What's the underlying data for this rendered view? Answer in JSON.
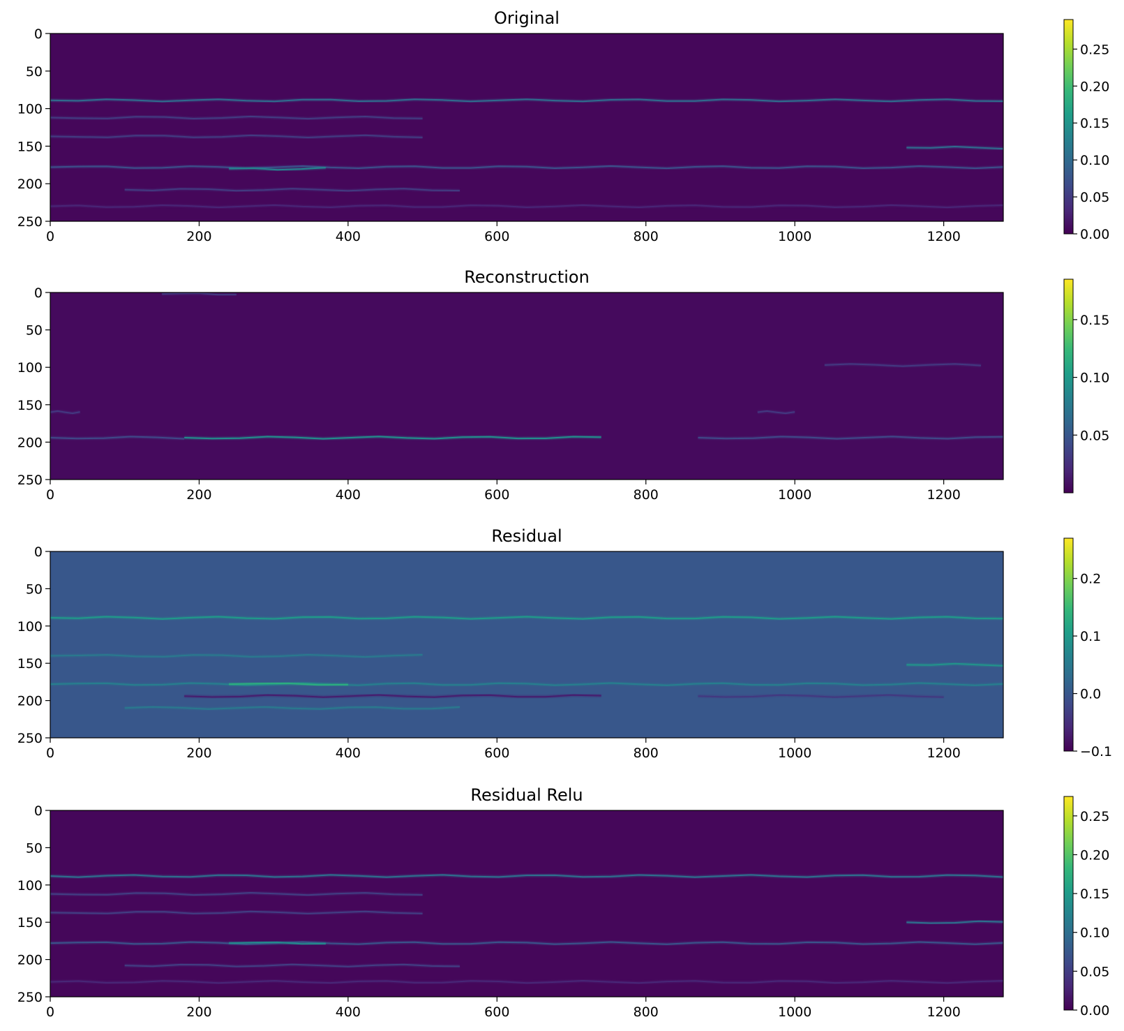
{
  "chart_data": [
    {
      "type": "heatmap",
      "title": "Original",
      "xlabel": "",
      "ylabel": "",
      "xlim": [
        0,
        1280
      ],
      "ylim": [
        250,
        0
      ],
      "xticks": [
        0,
        200,
        400,
        600,
        800,
        1000,
        1200
      ],
      "xtick_labels": [
        "0",
        "200",
        "400",
        "600",
        "800",
        "1000",
        "1200"
      ],
      "yticks": [
        0,
        50,
        100,
        150,
        200,
        250
      ],
      "ytick_labels": [
        "0",
        "50",
        "100",
        "150",
        "200",
        "250"
      ],
      "colormap": "viridis",
      "colorbar": {
        "vmin": 0.0,
        "vmax": 0.29,
        "ticks": [
          0.0,
          0.05,
          0.1,
          0.15,
          0.2,
          0.25
        ],
        "tick_labels": [
          "0.00",
          "0.05",
          "0.10",
          "0.15",
          "0.20",
          "0.25"
        ]
      },
      "background_value": 0.005,
      "bands": [
        {
          "y": 89,
          "x_from": 0,
          "x_to": 1280,
          "value": 0.1
        },
        {
          "y": 178,
          "x_from": 0,
          "x_to": 1280,
          "value": 0.07
        },
        {
          "y": 180,
          "x_from": 240,
          "x_to": 370,
          "value": 0.13
        },
        {
          "y": 152,
          "x_from": 1150,
          "x_to": 1280,
          "value": 0.1
        },
        {
          "y": 112,
          "x_from": 0,
          "x_to": 500,
          "value": 0.05
        },
        {
          "y": 137,
          "x_from": 0,
          "x_to": 500,
          "value": 0.05
        },
        {
          "y": 208,
          "x_from": 100,
          "x_to": 550,
          "value": 0.05
        },
        {
          "y": 230,
          "x_from": 0,
          "x_to": 1280,
          "value": 0.03
        }
      ]
    },
    {
      "type": "heatmap",
      "title": "Reconstruction",
      "xlabel": "",
      "ylabel": "",
      "xlim": [
        0,
        1280
      ],
      "ylim": [
        250,
        0
      ],
      "xticks": [
        0,
        200,
        400,
        600,
        800,
        1000,
        1200
      ],
      "xtick_labels": [
        "0",
        "200",
        "400",
        "600",
        "800",
        "1000",
        "1200"
      ],
      "yticks": [
        0,
        50,
        100,
        150,
        200,
        250
      ],
      "ytick_labels": [
        "0",
        "50",
        "100",
        "150",
        "200",
        "250"
      ],
      "colormap": "viridis",
      "colorbar": {
        "vmin": 0.0,
        "vmax": 0.185,
        "ticks": [
          0.05,
          0.1,
          0.15
        ],
        "tick_labels": [
          "0.05",
          "0.10",
          "0.15"
        ]
      },
      "background_value": 0.005,
      "bands": [
        {
          "y": 194,
          "x_from": 180,
          "x_to": 740,
          "value": 0.09
        },
        {
          "y": 194,
          "x_from": 0,
          "x_to": 180,
          "value": 0.04
        },
        {
          "y": 194,
          "x_from": 870,
          "x_to": 1280,
          "value": 0.04
        },
        {
          "y": 97,
          "x_from": 1040,
          "x_to": 1250,
          "value": 0.03
        },
        {
          "y": 160,
          "x_from": 0,
          "x_to": 40,
          "value": 0.03
        },
        {
          "y": 160,
          "x_from": 950,
          "x_to": 1000,
          "value": 0.03
        },
        {
          "y": 2,
          "x_from": 150,
          "x_to": 250,
          "value": 0.03
        }
      ]
    },
    {
      "type": "heatmap",
      "title": "Residual",
      "xlabel": "",
      "ylabel": "",
      "xlim": [
        0,
        1280
      ],
      "ylim": [
        250,
        0
      ],
      "xticks": [
        0,
        200,
        400,
        600,
        800,
        1000,
        1200
      ],
      "xtick_labels": [
        "0",
        "200",
        "400",
        "600",
        "800",
        "1000",
        "1200"
      ],
      "yticks": [
        0,
        50,
        100,
        150,
        200,
        250
      ],
      "ytick_labels": [
        "0",
        "50",
        "100",
        "150",
        "200",
        "250"
      ],
      "colormap": "viridis",
      "colorbar": {
        "vmin": -0.1,
        "vmax": 0.27,
        "ticks": [
          -0.1,
          0.0,
          0.1,
          0.2
        ],
        "tick_labels": [
          "−0.1",
          "0.0",
          "0.1",
          "0.2"
        ]
      },
      "background_value": 0.0,
      "bands": [
        {
          "y": 89,
          "x_from": 0,
          "x_to": 1280,
          "value": 0.1
        },
        {
          "y": 178,
          "x_from": 0,
          "x_to": 1280,
          "value": 0.06
        },
        {
          "y": 178,
          "x_from": 240,
          "x_to": 400,
          "value": 0.13
        },
        {
          "y": 194,
          "x_from": 180,
          "x_to": 740,
          "value": -0.07
        },
        {
          "y": 194,
          "x_from": 870,
          "x_to": 1200,
          "value": -0.04
        },
        {
          "y": 140,
          "x_from": 0,
          "x_to": 500,
          "value": 0.05
        },
        {
          "y": 152,
          "x_from": 1150,
          "x_to": 1280,
          "value": 0.09
        },
        {
          "y": 210,
          "x_from": 100,
          "x_to": 550,
          "value": 0.05
        }
      ]
    },
    {
      "type": "heatmap",
      "title": "Residual Relu",
      "xlabel": "",
      "ylabel": "",
      "xlim": [
        0,
        1280
      ],
      "ylim": [
        250,
        0
      ],
      "xticks": [
        0,
        200,
        400,
        600,
        800,
        1000,
        1200
      ],
      "xtick_labels": [
        "0",
        "200",
        "400",
        "600",
        "800",
        "1000",
        "1200"
      ],
      "yticks": [
        0,
        50,
        100,
        150,
        200,
        250
      ],
      "ytick_labels": [
        "0",
        "50",
        "100",
        "150",
        "200",
        "250"
      ],
      "colormap": "viridis",
      "colorbar": {
        "vmin": 0.0,
        "vmax": 0.275,
        "ticks": [
          0.0,
          0.05,
          0.1,
          0.15,
          0.2,
          0.25
        ],
        "tick_labels": [
          "0.00",
          "0.05",
          "0.10",
          "0.15",
          "0.20",
          "0.25"
        ]
      },
      "background_value": 0.005,
      "bands": [
        {
          "y": 88,
          "x_from": 0,
          "x_to": 1280,
          "value": 0.1
        },
        {
          "y": 178,
          "x_from": 0,
          "x_to": 1280,
          "value": 0.07
        },
        {
          "y": 178,
          "x_from": 240,
          "x_to": 370,
          "value": 0.13
        },
        {
          "y": 150,
          "x_from": 1150,
          "x_to": 1280,
          "value": 0.1
        },
        {
          "y": 112,
          "x_from": 0,
          "x_to": 500,
          "value": 0.05
        },
        {
          "y": 137,
          "x_from": 0,
          "x_to": 500,
          "value": 0.05
        },
        {
          "y": 208,
          "x_from": 100,
          "x_to": 550,
          "value": 0.05
        },
        {
          "y": 230,
          "x_from": 0,
          "x_to": 1280,
          "value": 0.03
        }
      ]
    }
  ]
}
